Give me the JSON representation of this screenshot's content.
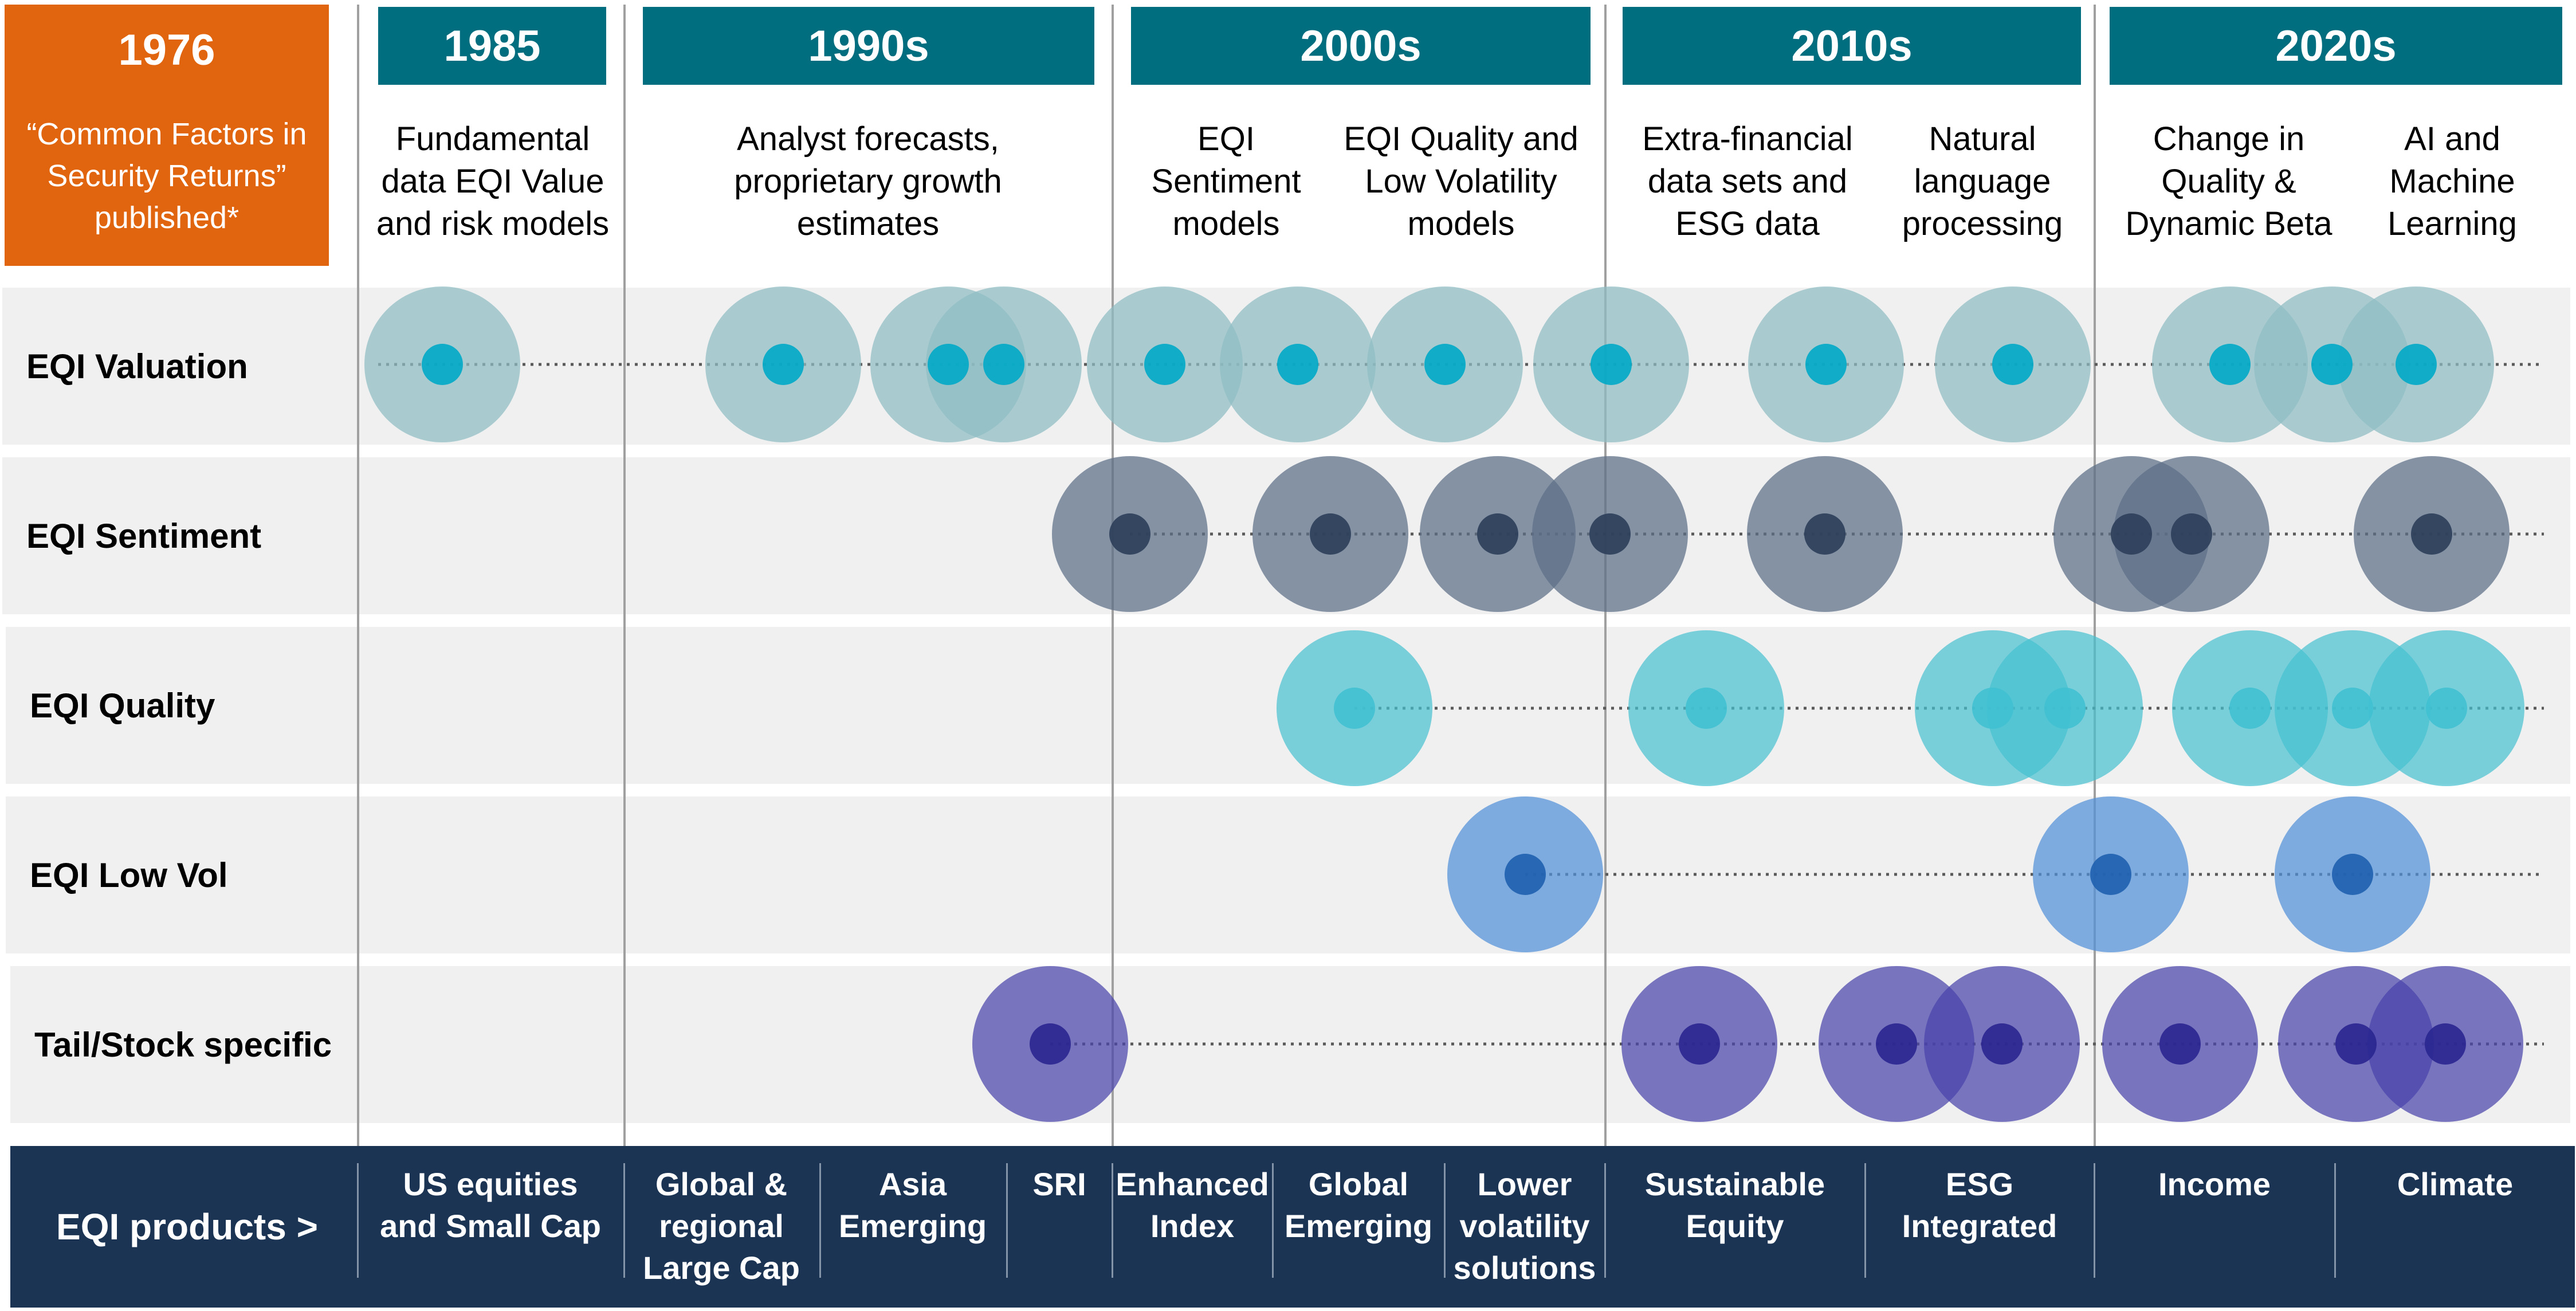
{
  "header": {
    "origin": {
      "year": "1976",
      "text": "“Common Factors in\nSecurity Returns”\npublished*"
    },
    "eras": [
      {
        "label": "1985"
      },
      {
        "label": "1990s"
      },
      {
        "label": "2000s"
      },
      {
        "label": "2010s"
      },
      {
        "label": "2020s"
      }
    ],
    "descriptions": [
      "Fundamental\ndata EQI Value\nand risk models",
      "Analyst forecasts,\nproprietary growth\nestimates",
      "EQI\nSentiment\nmodels",
      "EQI Quality and\nLow Volatility\nmodels",
      "Extra-financial\ndata sets and\nESG data",
      "Natural\nlanguage\nprocessing",
      "Change in\nQuality &\nDynamic Beta",
      "AI and\nMachine\nLearning"
    ]
  },
  "rows": [
    {
      "label": "EQI Valuation"
    },
    {
      "label": "EQI Sentiment"
    },
    {
      "label": "EQI Quality"
    },
    {
      "label": "EQI Low Vol"
    },
    {
      "label": "Tail/Stock specific"
    }
  ],
  "colors": {
    "header_teal": "#006e7f",
    "origin_orange": "#e1640e",
    "footer_navy": "#1c3454",
    "valuation_halo": "#8ebcc4",
    "valuation_dot": "#00a8c6",
    "sentiment_halo": "#5c6e86",
    "sentiment_dot": "#2c3e5a",
    "quality_halo": "#45c0d0",
    "quality_dot": "#40c0d2",
    "lowvol_halo": "#5090d8",
    "lowvol_dot": "#1f5fae",
    "tail_halo": "#4a44aa",
    "tail_dot": "#2a2690"
  },
  "footer": {
    "title": "EQI products  >",
    "products": [
      "US equities\nand Small Cap",
      "Global &\nregional\nLarge Cap",
      "Asia\nEmerging",
      "SRI",
      "Enhanced\nIndex",
      "Global\nEmerging",
      "Lower\nvolatility\nsolutions",
      "Sustainable\nEquity",
      "ESG\nIntegrated",
      "Income",
      "Climate"
    ]
  }
}
